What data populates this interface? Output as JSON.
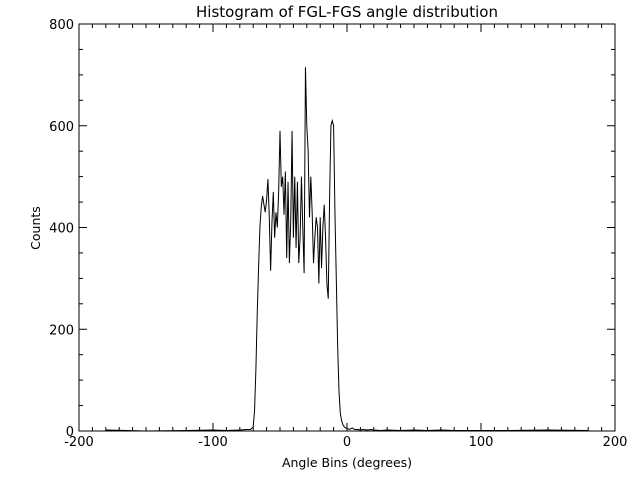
{
  "chart_data": {
    "type": "line",
    "title": "Histogram of FGL-FGS angle distribution",
    "xlabel": "Angle Bins (degrees)",
    "ylabel": "Counts",
    "xlim": [
      -200,
      200
    ],
    "ylim": [
      0,
      800
    ],
    "x_ticks": [
      -200,
      -100,
      0,
      100,
      200
    ],
    "x_tick_labels": [
      "-200",
      "-100",
      "0",
      "100",
      "200"
    ],
    "y_ticks": [
      0,
      200,
      400,
      600,
      800
    ],
    "y_tick_labels": [
      "0",
      "200",
      "400",
      "600",
      "800"
    ],
    "x_minor_step": 10,
    "y_minor_step": 50,
    "grid": false,
    "colors": {
      "line": "#000000",
      "axes": "#000000",
      "background": "#ffffff"
    },
    "series": [
      {
        "x": [
          -180,
          -150,
          -120,
          -100,
          -90,
          -80,
          -75,
          -72,
          -70,
          -69,
          -68,
          -67,
          -66,
          -65,
          -64,
          -63,
          -62,
          -61,
          -60,
          -59,
          -58,
          -57,
          -56,
          -55,
          -54,
          -53,
          -52,
          -51,
          -50,
          -49,
          -48,
          -47,
          -46,
          -45,
          -44,
          -43,
          -42,
          -41,
          -40,
          -39,
          -38,
          -37,
          -36,
          -35,
          -34,
          -33,
          -32,
          -31,
          -30,
          -29,
          -28,
          -27,
          -26,
          -25,
          -24,
          -23,
          -22,
          -21,
          -20,
          -19,
          -18,
          -17,
          -16,
          -15,
          -14,
          -13,
          -12,
          -11,
          -10,
          -9,
          -8,
          -7,
          -6,
          -5,
          -4,
          -3,
          -2,
          -1,
          0,
          1,
          2,
          3,
          4,
          5,
          6,
          8,
          10,
          12,
          15,
          18,
          20,
          25,
          30,
          40,
          50,
          60,
          70,
          80,
          100,
          120,
          150,
          180
        ],
        "values": [
          2,
          0,
          1,
          2,
          1,
          2,
          3,
          3,
          8,
          40,
          120,
          230,
          320,
          400,
          440,
          462,
          445,
          430,
          455,
          495,
          420,
          315,
          410,
          470,
          380,
          430,
          400,
          470,
          590,
          480,
          500,
          425,
          510,
          340,
          490,
          330,
          410,
          590,
          380,
          500,
          360,
          490,
          330,
          380,
          500,
          400,
          310,
          715,
          600,
          550,
          420,
          500,
          430,
          330,
          380,
          420,
          400,
          290,
          420,
          320,
          400,
          445,
          380,
          290,
          260,
          455,
          600,
          610,
          600,
          430,
          300,
          170,
          80,
          35,
          20,
          12,
          8,
          6,
          5,
          4,
          3,
          5,
          6,
          4,
          3,
          3,
          2,
          3,
          2,
          3,
          2,
          1,
          2,
          1,
          2,
          1,
          2,
          1,
          1,
          1,
          2,
          1
        ]
      }
    ]
  }
}
